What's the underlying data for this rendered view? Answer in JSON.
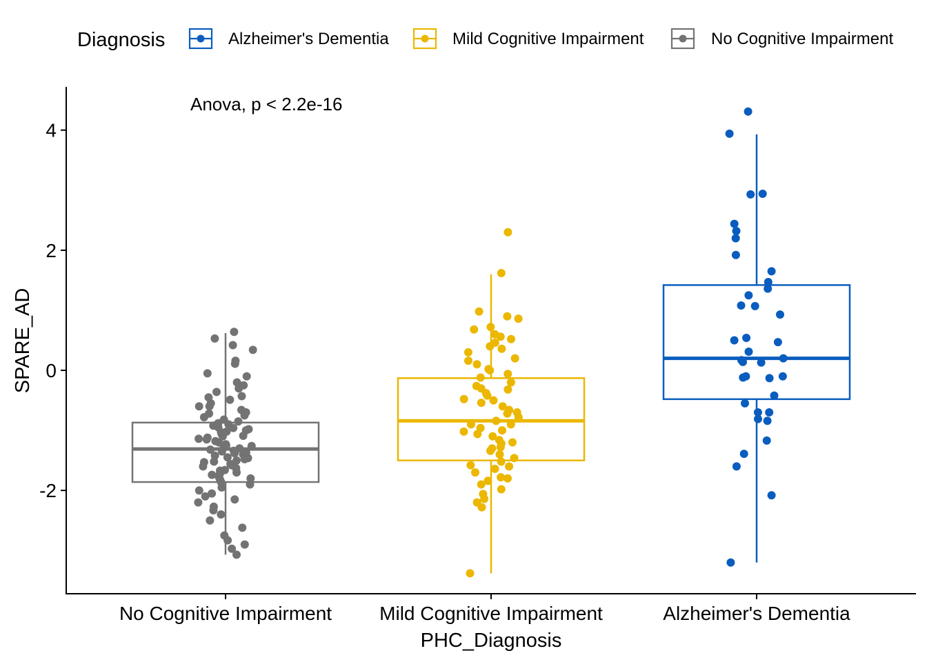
{
  "chart_data": {
    "type": "boxplot",
    "xlabel": "PHC_Diagnosis",
    "ylabel": "SPARE_AD",
    "ylim": [
      -3.72,
      4.72
    ],
    "yticks": [
      -2,
      0,
      2,
      4
    ],
    "ytick_labels": [
      "-2",
      "0",
      "2",
      "4"
    ],
    "categories": [
      "No Cognitive Impairment",
      "Mild Cognitive Impairment",
      "Alzheimer's Dementia"
    ],
    "annotation": "Anova, p < 2.2e-16",
    "legend": {
      "title": "Diagnosis",
      "position": "top",
      "entries": [
        {
          "label": "Alzheimer's Dementia",
          "color": "#0A5DBE"
        },
        {
          "label": "Mild Cognitive Impairment",
          "color": "#EBB700"
        },
        {
          "label": "No Cognitive Impairment",
          "color": "#737373"
        }
      ]
    },
    "series": [
      {
        "name": "No Cognitive Impairment",
        "color": "#737373",
        "box": {
          "min": -3.07,
          "q1": -1.86,
          "median": -1.31,
          "q3": -0.87,
          "max": 0.62
        },
        "points": [
          0.64,
          0.53,
          0.42,
          0.34,
          0.16,
          0.11,
          -0.05,
          -0.1,
          -0.2,
          -0.25,
          -0.3,
          -0.36,
          -0.43,
          -0.45,
          -0.49,
          -0.55,
          -0.6,
          -0.66,
          -0.7,
          -0.75,
          -0.78,
          -0.82,
          -0.85,
          -0.88,
          -0.92,
          -0.95,
          -0.98,
          -1.0,
          -1.03,
          -1.06,
          -1.09,
          -1.12,
          -1.15,
          -1.18,
          -1.2,
          -1.23,
          -1.26,
          -1.28,
          -1.3,
          -1.32,
          -1.35,
          -1.37,
          -1.4,
          -1.42,
          -1.45,
          -1.48,
          -1.5,
          -1.53,
          -1.56,
          -1.6,
          -1.63,
          -1.67,
          -1.7,
          -1.74,
          -1.78,
          -1.82,
          -1.86,
          -1.9,
          -1.95,
          -2.0,
          -2.05,
          -2.1,
          -2.15,
          -2.2,
          -2.27,
          -2.33,
          -2.4,
          -2.5,
          -2.62,
          -2.75,
          -2.83,
          -2.9,
          -2.97,
          -3.07,
          -0.6,
          -0.9,
          -1.1,
          -1.25,
          -1.38,
          -1.52,
          -1.66,
          -1.8,
          -0.72,
          -1.02,
          -1.46,
          -1.58,
          -1.14,
          -0.96,
          -1.34,
          -1.72
        ]
      },
      {
        "name": "Mild Cognitive Impairment",
        "color": "#EBB700",
        "box": {
          "min": -3.38,
          "q1": -1.5,
          "median": -0.84,
          "q3": -0.13,
          "max": 1.6
        },
        "points": [
          2.3,
          1.62,
          0.98,
          0.9,
          0.86,
          0.72,
          0.68,
          0.6,
          0.56,
          0.52,
          0.46,
          0.36,
          0.3,
          0.2,
          0.16,
          0.1,
          0.02,
          -0.06,
          -0.12,
          -0.2,
          -0.26,
          -0.32,
          -0.38,
          -0.42,
          -0.48,
          -0.54,
          -0.6,
          -0.66,
          -0.72,
          -0.78,
          -0.84,
          -0.9,
          -0.96,
          -1.02,
          -1.06,
          -1.1,
          -1.16,
          -1.22,
          -1.28,
          -1.34,
          -1.4,
          -1.46,
          -1.52,
          -1.58,
          -1.64,
          -1.7,
          -1.78,
          -1.84,
          -1.9,
          -1.98,
          -2.06,
          -2.14,
          -2.2,
          -2.28,
          -3.38,
          -0.5,
          -0.7,
          -1.0,
          -1.3,
          -1.6,
          -1.8,
          -0.3,
          0.0,
          0.4,
          -0.9,
          -1.2
        ]
      },
      {
        "name": "Alzheimer's Dementia",
        "color": "#0A5DBE",
        "box": {
          "min": -3.2,
          "q1": -0.48,
          "median": 0.2,
          "q3": 1.42,
          "max": 3.93
        },
        "points": [
          4.31,
          3.94,
          2.94,
          2.93,
          2.44,
          2.32,
          2.2,
          1.92,
          1.65,
          1.47,
          1.36,
          1.25,
          1.08,
          1.07,
          0.93,
          0.54,
          0.5,
          0.47,
          0.31,
          0.2,
          0.17,
          0.14,
          0.13,
          -0.1,
          -0.12,
          -0.13,
          -0.1,
          -0.42,
          -0.55,
          -0.7,
          -0.7,
          -0.81,
          -0.84,
          -1.17,
          -1.39,
          -1.6,
          -2.08,
          -3.2
        ]
      }
    ]
  }
}
